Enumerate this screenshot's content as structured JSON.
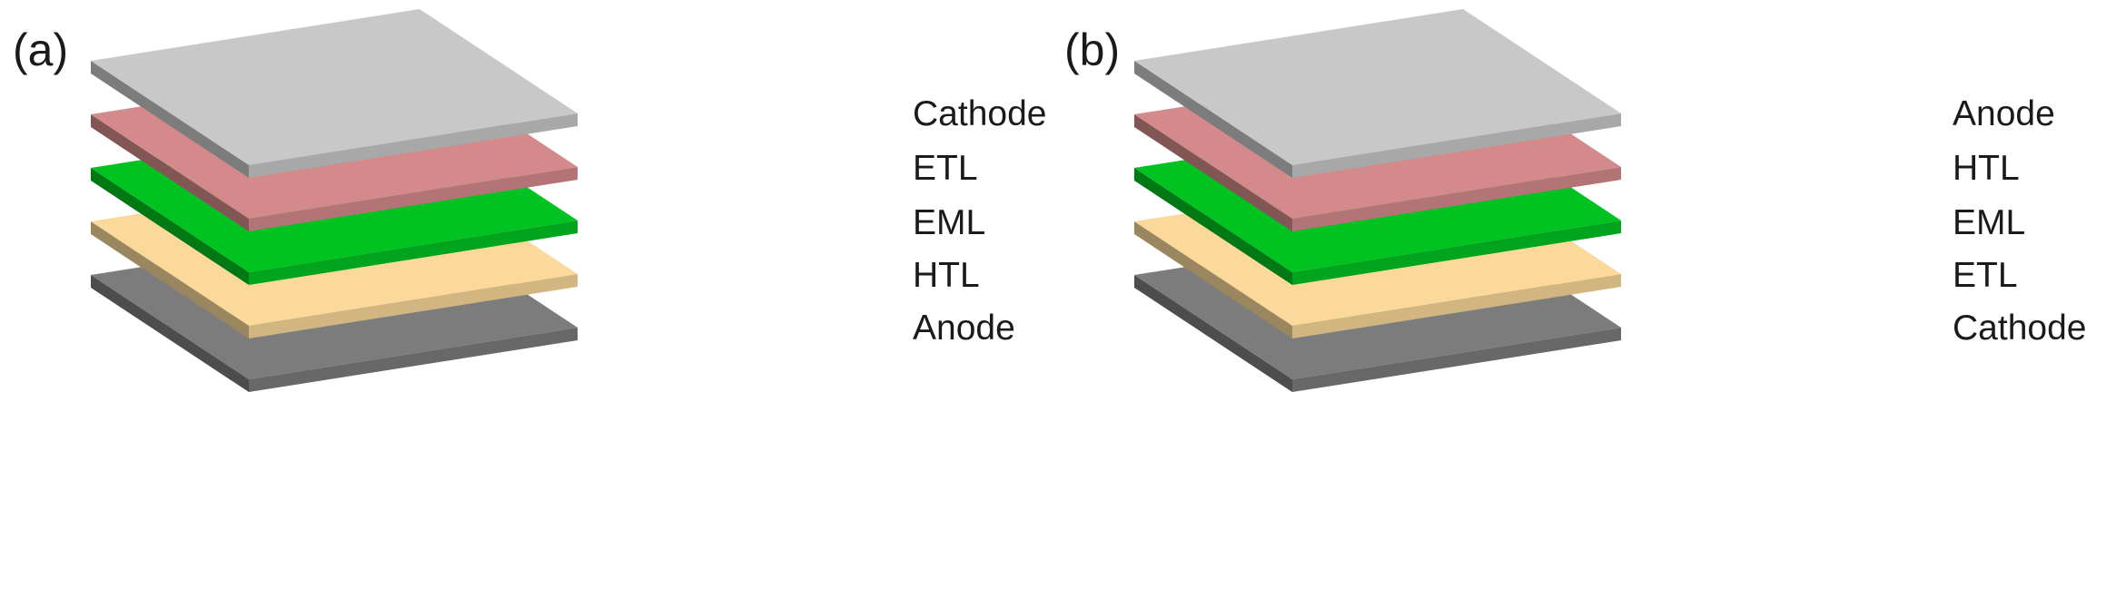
{
  "panels": [
    {
      "label": "(a)",
      "layers": [
        {
          "name": "Cathode",
          "color": "#c8c8c8"
        },
        {
          "name": "ETL",
          "color": "#d48a8a"
        },
        {
          "name": "EML",
          "color": "#00c322"
        },
        {
          "name": "HTL",
          "color": "#fad99a"
        },
        {
          "name": "Anode",
          "color": "#7c7c7c"
        }
      ]
    },
    {
      "label": "(b)",
      "layers": [
        {
          "name": "Anode",
          "color": "#c8c8c8"
        },
        {
          "name": "HTL",
          "color": "#d48a8a"
        },
        {
          "name": "EML",
          "color": "#00c322"
        },
        {
          "name": "ETL",
          "color": "#fad99a"
        },
        {
          "name": "Cathode",
          "color": "#7c7c7c"
        }
      ]
    }
  ]
}
